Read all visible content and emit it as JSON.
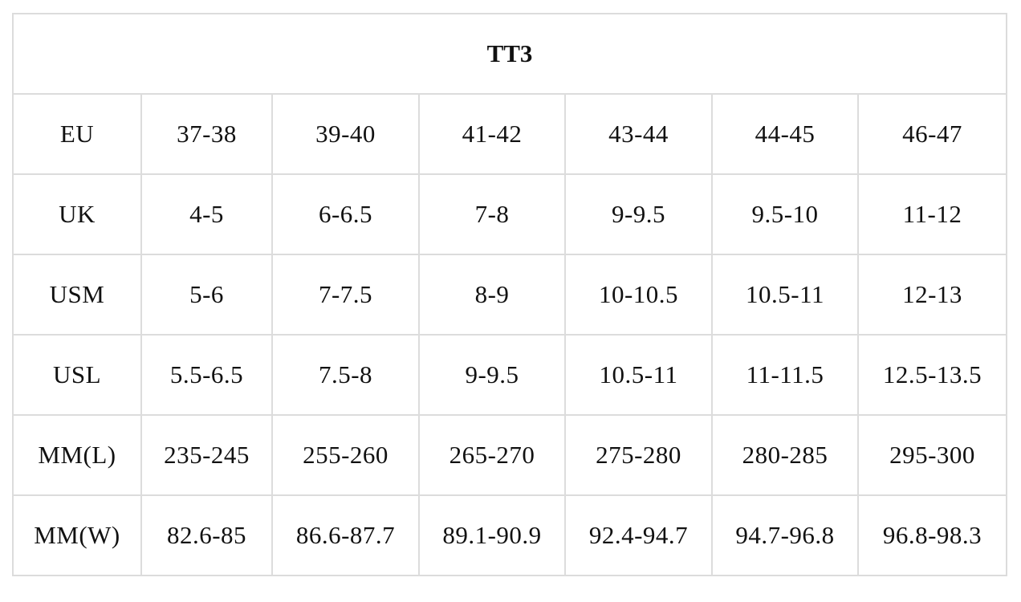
{
  "table": {
    "title": "TT3",
    "rows": [
      {
        "label": "EU",
        "cells": [
          "37-38",
          "39-40",
          "41-42",
          "43-44",
          "44-45",
          "46-47"
        ]
      },
      {
        "label": "UK",
        "cells": [
          "4-5",
          "6-6.5",
          "7-8",
          "9-9.5",
          "9.5-10",
          "11-12"
        ]
      },
      {
        "label": "USM",
        "cells": [
          "5-6",
          "7-7.5",
          "8-9",
          "10-10.5",
          "10.5-11",
          "12-13"
        ]
      },
      {
        "label": "USL",
        "cells": [
          "5.5-6.5",
          "7.5-8",
          "9-9.5",
          "10.5-11",
          "11-11.5",
          "12.5-13.5"
        ]
      },
      {
        "label": "MM(L)",
        "cells": [
          "235-245",
          "255-260",
          "265-270",
          "275-280",
          "280-285",
          "295-300"
        ]
      },
      {
        "label": "MM(W)",
        "cells": [
          "82.6-85",
          "86.6-87.7",
          "89.1-90.9",
          "92.4-94.7",
          "94.7-96.8",
          "96.8-98.3"
        ]
      }
    ]
  }
}
